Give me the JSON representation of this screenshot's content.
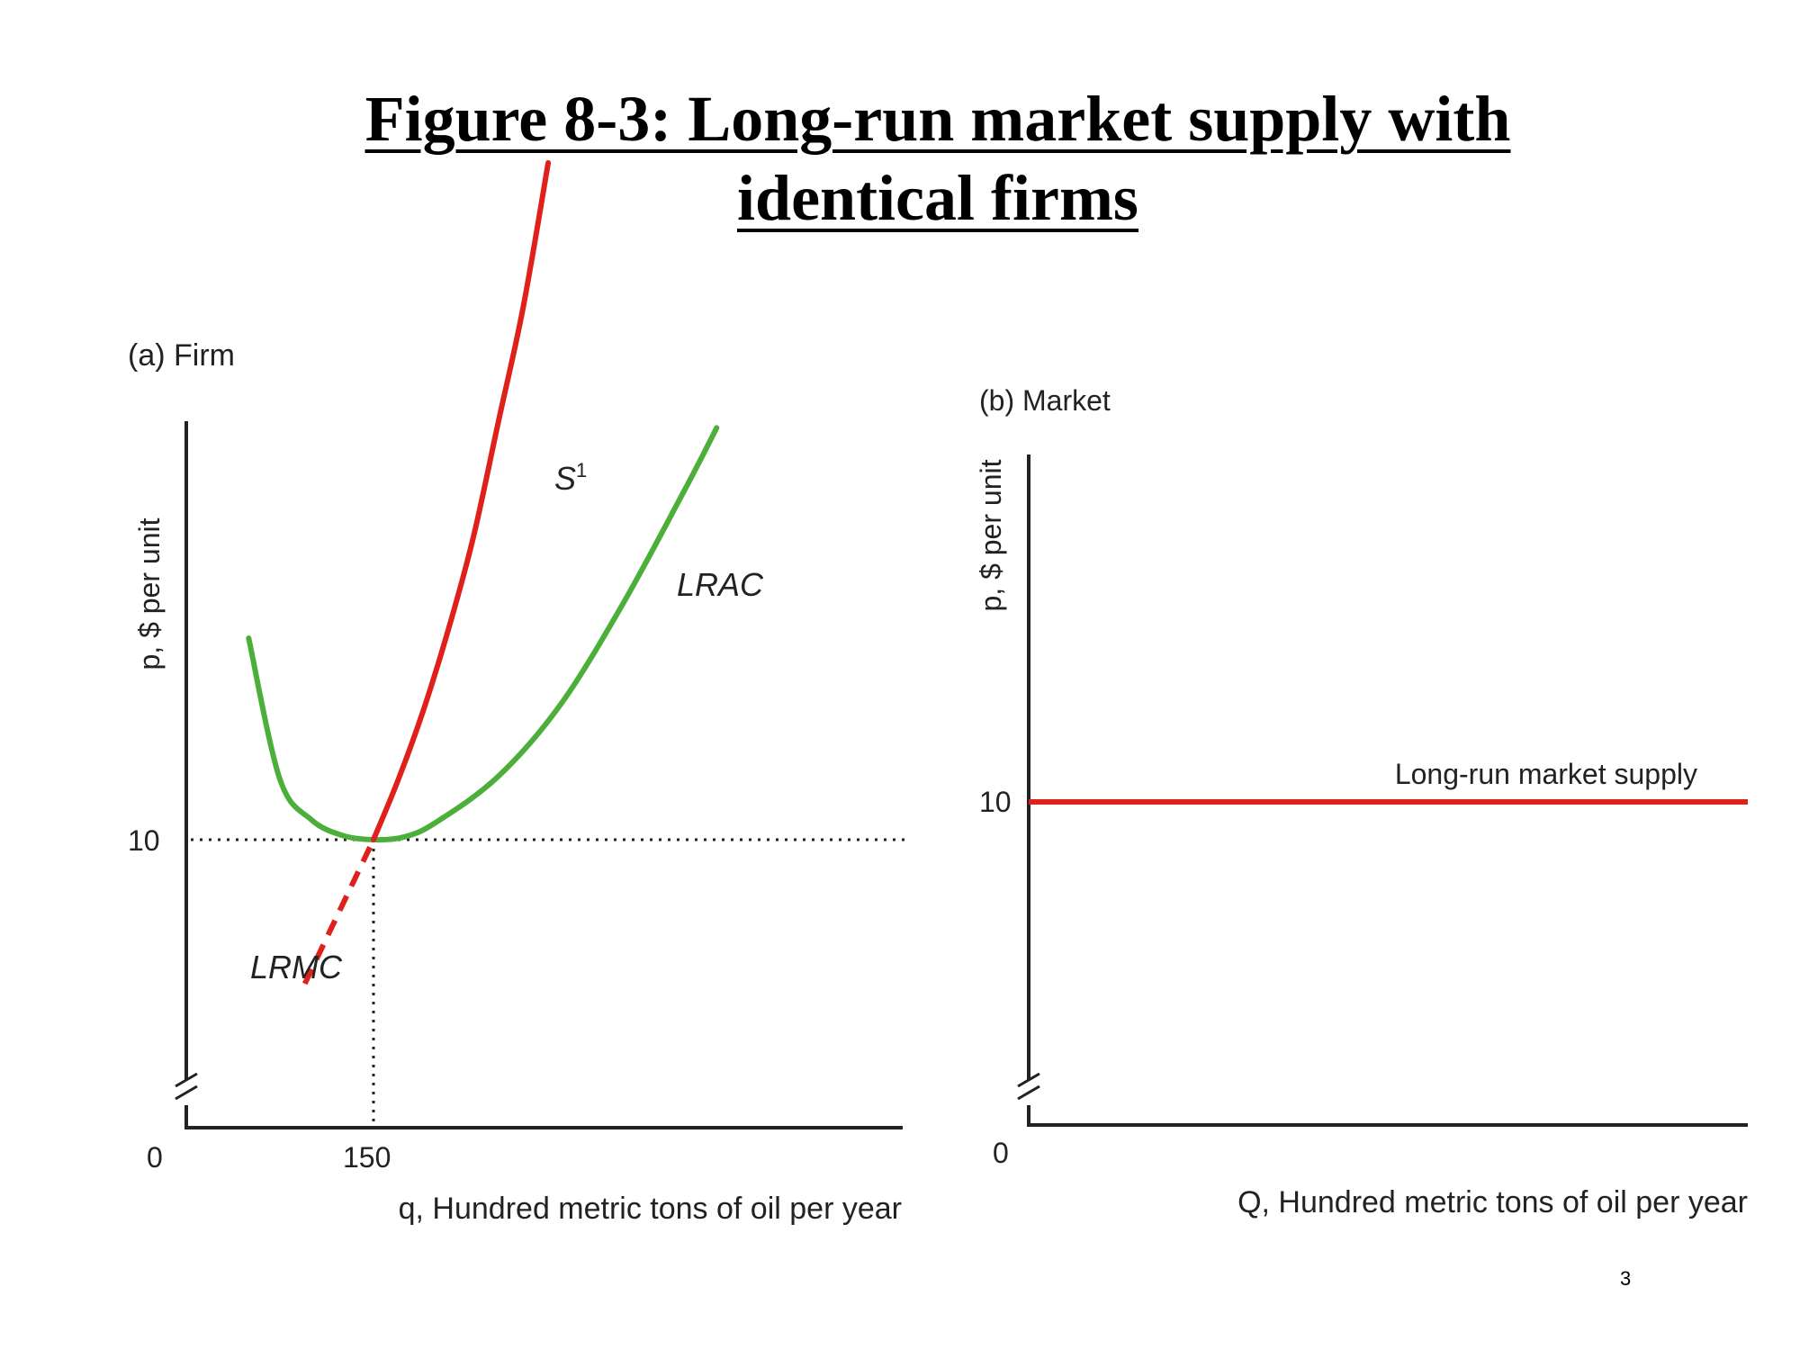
{
  "slide": {
    "title_line1": "Figure 8-3: Long-run market supply with",
    "title_line2": "identical firms",
    "page_number": "3"
  },
  "chart_data": [
    {
      "type": "line",
      "panel_label": "(a) Firm",
      "xlabel": "q, Hundred metric tons of oil per year",
      "ylabel": "p, $ per unit",
      "x_ticks": [
        "0",
        "150"
      ],
      "y_ticks": [
        "10"
      ],
      "axis_break": true,
      "reference_point": {
        "x": 150,
        "y": 10,
        "style": "dotted guide lines"
      },
      "series": [
        {
          "name": "LRAC",
          "color": "#4caf3a",
          "points": [
            [
              50,
              17
            ],
            [
              75,
              12.1
            ],
            [
              100,
              10.7
            ],
            [
              125,
              10.15
            ],
            [
              150,
              10
            ],
            [
              175,
              10.1
            ],
            [
              200,
              10.6
            ],
            [
              250,
              12.2
            ],
            [
              300,
              14.7
            ],
            [
              350,
              18.2
            ],
            [
              400,
              22.2
            ],
            [
              425,
              24.3
            ]
          ]
        },
        {
          "name": "S",
          "name_superscript": "1",
          "color": "#e0201a",
          "points": [
            [
              150,
              10
            ],
            [
              170,
              12.1
            ],
            [
              190,
              14.5
            ],
            [
              210,
              17.3
            ],
            [
              230,
              20.5
            ],
            [
              250,
              24.5
            ],
            [
              270,
              28.5
            ],
            [
              290,
              33.5
            ]
          ]
        },
        {
          "name": "LRMC",
          "color": "#e0201a",
          "style": "dashed",
          "points": [
            [
              95,
              5
            ],
            [
              150,
              10
            ]
          ]
        }
      ]
    },
    {
      "type": "line",
      "panel_label": "(b) Market",
      "xlabel": "Q, Hundred metric tons of oil per year",
      "ylabel": "p, $ per unit",
      "x_ticks": [
        "0"
      ],
      "y_ticks": [
        "10"
      ],
      "axis_break": true,
      "series": [
        {
          "name": "Long-run market supply",
          "color": "#e0201a",
          "points": [
            [
              0,
              10
            ],
            [
              1,
              10
            ]
          ]
        }
      ]
    }
  ]
}
